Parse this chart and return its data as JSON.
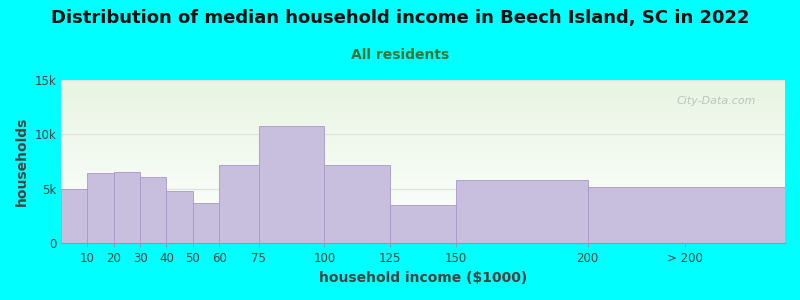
{
  "title": "Distribution of median household income in Beech Island, SC in 2022",
  "subtitle": "All residents",
  "xlabel": "household income ($1000)",
  "ylabel": "households",
  "background_color": "#00FFFF",
  "plot_bg_top": "#e8f5e2",
  "plot_bg_bottom": "#ffffff",
  "bar_color": "#c8bedd",
  "bar_edge_color": "#a898c8",
  "bar_linewidth": 0.6,
  "bar_lefts": [
    0,
    10,
    20,
    30,
    40,
    50,
    60,
    75,
    100,
    125,
    150,
    200
  ],
  "bar_widths": [
    10,
    10,
    10,
    10,
    10,
    10,
    15,
    25,
    25,
    25,
    50,
    75
  ],
  "bar_heights": [
    5000,
    6500,
    6600,
    6100,
    4800,
    3700,
    7200,
    10800,
    7200,
    3500,
    5800,
    5200
  ],
  "xlim": [
    0,
    275
  ],
  "ylim": [
    0,
    15000
  ],
  "yticks": [
    0,
    5000,
    10000,
    15000
  ],
  "ytick_labels": [
    "0",
    "5k",
    "10k",
    "15k"
  ],
  "xtick_positions": [
    10,
    20,
    30,
    40,
    50,
    60,
    75,
    100,
    125,
    150,
    200,
    237
  ],
  "xtick_labels": [
    "10",
    "20",
    "30",
    "40",
    "50",
    "60",
    "75",
    "100",
    "125",
    "150",
    "200",
    "> 200"
  ],
  "title_fontsize": 13,
  "subtitle_fontsize": 10,
  "label_fontsize": 10,
  "tick_fontsize": 8.5,
  "watermark_text": "City-Data.com",
  "grid_color": "#e0e0e0",
  "subtitle_color": "#337733",
  "title_color": "#111111",
  "axis_color": "#555555",
  "tick_color": "#444444"
}
